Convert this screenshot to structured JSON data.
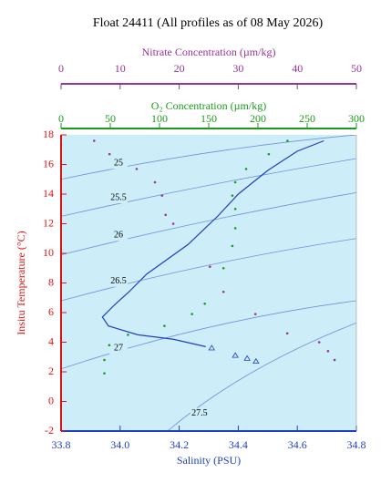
{
  "chart_data": {
    "type": "scatter",
    "title": "Float 24411  (All profiles as of 08 May 2026)",
    "background": "#cdeef8",
    "axes": {
      "nitrate": {
        "label": "Nitrate Concentration (µm/kg)",
        "color": "#993399",
        "lim": [
          0,
          50
        ],
        "ticks": [
          0,
          10,
          20,
          30,
          40,
          50
        ]
      },
      "oxygen": {
        "label": "O₂ Concentration (µm/kg)",
        "color": "#1a9a1a",
        "lim": [
          0,
          300
        ],
        "ticks": [
          0,
          50,
          100,
          150,
          200,
          250,
          300
        ]
      },
      "salinity": {
        "label": "Salinity (PSU)",
        "color": "#1f3fbf",
        "lim": [
          33.8,
          34.8
        ],
        "ticks": [
          {
            "value": 33.8,
            "label": "33.8"
          },
          {
            "value": 34.0,
            "label": "34.0"
          },
          {
            "value": 34.2,
            "label": "34.2"
          },
          {
            "value": 34.4,
            "label": "34.4"
          },
          {
            "value": 34.6,
            "label": "34.6"
          },
          {
            "value": 34.8,
            "label": "34.8"
          }
        ]
      },
      "temperature": {
        "label": "Insitu Temperature (°C)",
        "color": "#dd1111",
        "lim": [
          -2,
          18
        ],
        "ticks": [
          -2,
          0,
          2,
          4,
          6,
          8,
          10,
          12,
          14,
          16,
          18
        ]
      }
    },
    "contours": [
      {
        "label": "25",
        "x": [
          33.8,
          34.3,
          34.8
        ],
        "y": [
          15.0,
          16.8,
          18.0
        ]
      },
      {
        "label": "25.5",
        "x": [
          33.8,
          34.3,
          34.8
        ],
        "y": [
          12.5,
          14.6,
          16.4
        ]
      },
      {
        "label": "26",
        "x": [
          33.8,
          34.3,
          34.8
        ],
        "y": [
          9.9,
          12.2,
          14.1
        ]
      },
      {
        "label": "26.5",
        "x": [
          33.8,
          34.3,
          34.8
        ],
        "y": [
          6.8,
          9.2,
          11.0
        ]
      },
      {
        "label": "27",
        "x": [
          33.8,
          34.3,
          34.8
        ],
        "y": [
          2.2,
          5.0,
          6.8
        ]
      },
      {
        "label": "27.5",
        "x": [
          34.16,
          34.45,
          34.8
        ],
        "y": [
          -2.0,
          2.0,
          5.3
        ]
      }
    ],
    "series": [
      {
        "axis": "salinity",
        "color": "#1f3fbf",
        "marker": "line",
        "x": [
          34.69,
          34.6,
          34.5,
          34.4,
          34.33,
          34.23,
          34.09,
          34.03,
          33.98,
          33.94,
          33.96,
          34.06,
          34.18,
          34.29
        ],
        "y": [
          17.6,
          16.9,
          15.6,
          14.0,
          12.5,
          10.6,
          8.6,
          7.4,
          6.5,
          5.7,
          5.1,
          4.5,
          4.2,
          3.7
        ]
      },
      {
        "axis": "salinity",
        "color": "#1f3fbf",
        "marker": "triangle",
        "x": [
          34.31,
          34.39,
          34.43,
          34.46
        ],
        "y": [
          3.6,
          3.1,
          2.9,
          2.7
        ]
      },
      {
        "axis": "oxygen",
        "color": "#1a9a1a",
        "marker": "dot",
        "x": [
          230,
          211,
          188,
          177,
          174,
          177,
          177,
          174,
          165,
          146,
          133,
          105,
          68,
          49,
          44,
          44
        ],
        "y": [
          17.6,
          16.7,
          15.7,
          14.8,
          13.9,
          13.0,
          11.7,
          10.5,
          9.0,
          6.6,
          5.9,
          5.1,
          4.5,
          3.8,
          2.8,
          1.9
        ]
      },
      {
        "axis": "nitrate",
        "color": "#993399",
        "marker": "dot",
        "x": [
          5.6,
          8.2,
          12.8,
          15.9,
          17.1,
          17.7,
          19.0,
          25.2,
          27.5,
          32.9,
          38.3,
          43.7,
          45.2,
          46.3
        ],
        "y": [
          17.6,
          16.7,
          15.7,
          14.8,
          13.9,
          12.6,
          12.0,
          9.1,
          7.4,
          5.9,
          4.6,
          4.0,
          3.4,
          2.8
        ]
      }
    ]
  }
}
